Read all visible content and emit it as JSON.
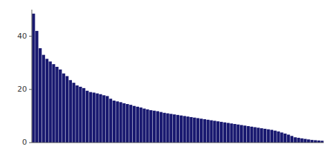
{
  "chart_data": {
    "type": "bar",
    "values": [
      48.5,
      42.0,
      35.5,
      33.0,
      31.5,
      30.5,
      29.5,
      28.5,
      27.5,
      26.0,
      25.0,
      23.5,
      22.5,
      21.5,
      21.0,
      20.5,
      19.5,
      19.0,
      18.8,
      18.5,
      18.2,
      17.8,
      17.5,
      16.5,
      15.8,
      15.5,
      15.2,
      14.8,
      14.5,
      14.2,
      13.8,
      13.5,
      13.2,
      12.8,
      12.5,
      12.2,
      12.0,
      11.8,
      11.5,
      11.2,
      11.0,
      10.8,
      10.6,
      10.4,
      10.2,
      10.0,
      9.8,
      9.6,
      9.4,
      9.2,
      9.0,
      8.8,
      8.6,
      8.4,
      8.2,
      8.0,
      7.8,
      7.6,
      7.4,
      7.2,
      7.0,
      6.8,
      6.6,
      6.4,
      6.2,
      6.0,
      5.8,
      5.6,
      5.4,
      5.2,
      5.0,
      4.8,
      4.5,
      4.2,
      3.8,
      3.4,
      3.0,
      2.5,
      2.0,
      1.8,
      1.6,
      1.4,
      1.2,
      1.0,
      0.9,
      0.8,
      0.7
    ],
    "color": "#191970",
    "ylim": [
      0,
      50
    ],
    "yticks": [
      0,
      20,
      40
    ],
    "grid": false,
    "tick_labels": "y"
  }
}
